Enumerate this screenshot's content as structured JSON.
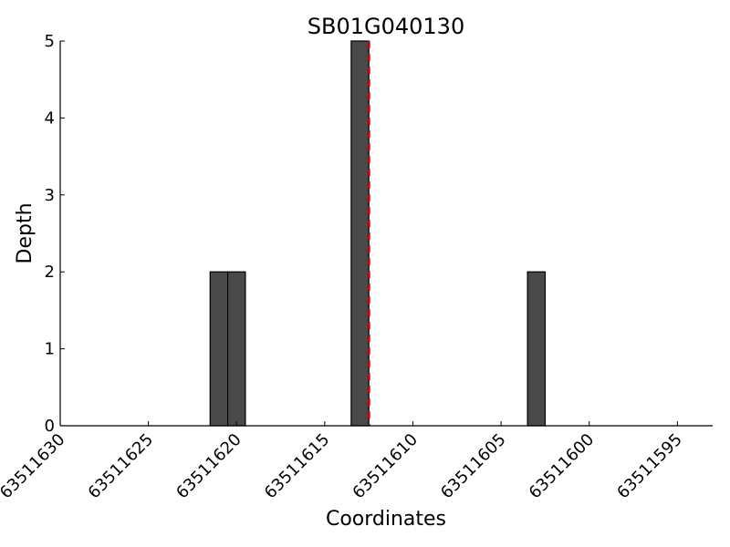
{
  "chart_data": {
    "type": "bar",
    "title": "SB01G040130",
    "xlabel": "Coordinates",
    "ylabel": "Depth",
    "xlim": [
      63511630,
      63511593
    ],
    "x_reversed": true,
    "ylim": [
      0,
      5
    ],
    "xticks": [
      63511630,
      63511625,
      63511620,
      63511615,
      63511610,
      63511605,
      63511600,
      63511595
    ],
    "xtick_labels": [
      "63511630",
      "63511625",
      "63511620",
      "63511615",
      "63511610",
      "63511605",
      "63511600",
      "63511595"
    ],
    "yticks": [
      0,
      1,
      2,
      3,
      4,
      5
    ],
    "ytick_labels": [
      "0",
      "1",
      "2",
      "3",
      "4",
      "5"
    ],
    "bar_width": 1,
    "x": [
      63511621,
      63511620,
      63511613,
      63511603
    ],
    "values": [
      2,
      2,
      5,
      2
    ],
    "bar_color": "#4a4a4a",
    "bar_edge_color": "#000000",
    "marker_line": {
      "x": 63511612.5,
      "color": "#cc0000",
      "style": "dashed"
    },
    "grid": false
  }
}
